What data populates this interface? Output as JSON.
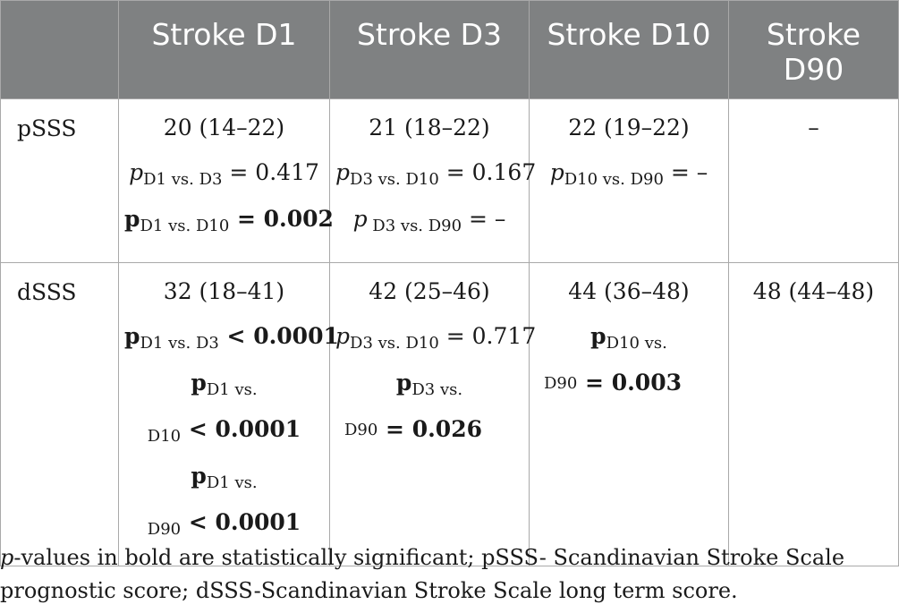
{
  "table": {
    "header": [
      "",
      "Stroke D1",
      "Stroke D3",
      "Stroke D10",
      "Stroke D90"
    ],
    "rows": [
      {
        "label": "pSSS",
        "cells": [
          {
            "value": "20 (14–22)",
            "tests": [
              {
                "p": "p",
                "sub": "D1 vs. D3",
                "rel": " = 0.417",
                "bold": false
              },
              {
                "p": "p",
                "sub": "D1 vs. D10",
                "rel": " = ",
                "num": "0.002",
                "bold": true
              }
            ]
          },
          {
            "value": "21 (18–22)",
            "tests": [
              {
                "p": "p",
                "sub": "D3 vs. D10",
                "rel": " = 0.167",
                "bold": false
              },
              {
                "p": "p",
                "sub": " D3 vs. D90",
                "rel": " = –",
                "bold": false
              }
            ]
          },
          {
            "value": "22 (19–22)",
            "tests": [
              {
                "p": "p",
                "sub": "D10 vs. D90",
                "rel": " = –",
                "bold": false
              }
            ]
          },
          {
            "value": "–",
            "tests": []
          }
        ]
      },
      {
        "label": "dSSS",
        "cells": [
          {
            "value": "32 (18–41)",
            "tests": [
              {
                "p": "p",
                "sub": "D1 vs. D3",
                "rel": " < ",
                "num": "0.0001",
                "bold": true
              },
              {
                "p": "p",
                "sub": "D1 vs.",
                "sub2": "D10",
                "rel": " < ",
                "num": "0.0001",
                "bold": true
              },
              {
                "p": "p",
                "sub": "D1 vs.",
                "sub2": "D90",
                "rel": " < ",
                "num": "0.0001",
                "bold": true
              }
            ]
          },
          {
            "value": "42 (25–46)",
            "tests": [
              {
                "p": "p",
                "sub": "D3 vs. D10",
                "rel": " = 0.717",
                "bold": false
              },
              {
                "p": "p",
                "sub": "D3 vs.",
                "sub2": "D90",
                "rel": " = ",
                "num": "0.026",
                "bold": true
              }
            ]
          },
          {
            "value": "44 (36–48)",
            "tests": [
              {
                "p": "p",
                "sub": "D10 vs.",
                "sub2": "D90",
                "rel": " = ",
                "num": "0.003",
                "bold": true
              }
            ]
          },
          {
            "value": "48 (44–48)",
            "tests": []
          }
        ]
      }
    ]
  },
  "footnote": {
    "p": "p",
    "text": "-values in bold are statistically significant; pSSS- Scandinavian Stroke Scale prognostic score; dSSS-Scandinavian Stroke Scale long term score."
  }
}
